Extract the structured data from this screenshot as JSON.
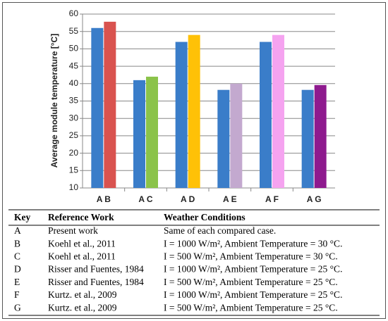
{
  "chart_data": {
    "type": "bar",
    "y_label": "Average module temperature [°C]",
    "categories": [
      "A B",
      "A C",
      "A D",
      "A E",
      "A F",
      "A G"
    ],
    "series": [
      {
        "color": "#3a7dc9",
        "values": [
          56,
          41,
          52,
          38.2,
          52,
          38.2
        ]
      },
      {
        "colors": [
          "#d9534f",
          "#8bc34a",
          "#ffc107",
          "#c3a9cf",
          "#f5a3f0",
          "#8e1a8e"
        ],
        "values": [
          57.8,
          42,
          54,
          40,
          54,
          39.6
        ]
      }
    ],
    "ylim": [
      10,
      60
    ],
    "yticks": [
      10,
      15,
      20,
      25,
      30,
      35,
      40,
      45,
      50,
      55,
      60
    ],
    "grid": true
  },
  "table": {
    "header": [
      "Key",
      "Reference Work",
      "Weather Conditions"
    ],
    "rows": [
      [
        "A",
        "Present work",
        "Same of each compared case."
      ],
      [
        "B",
        "Koehl et al., 2011",
        "I = 1000 W/m², Ambient Temperature = 30 °C."
      ],
      [
        "C",
        "Koehl et al., 2011",
        "I = 500 W/m², Ambient Temperature = 30 °C."
      ],
      [
        "D",
        "Risser and Fuentes, 1984",
        "I = 1000 W/m², Ambient Temperature = 25 °C."
      ],
      [
        "E",
        "Risser and Fuentes, 1984",
        "I = 500 W/m², Ambient Temperature = 25 °C."
      ],
      [
        "F",
        "Kurtz. et al., 2009",
        "I = 1000 W/m², Ambient Temperature = 25 °C."
      ],
      [
        "G",
        "Kurtz. et al., 2009",
        "I = 500 W/m², Ambient Temperature = 25 °C."
      ]
    ]
  }
}
